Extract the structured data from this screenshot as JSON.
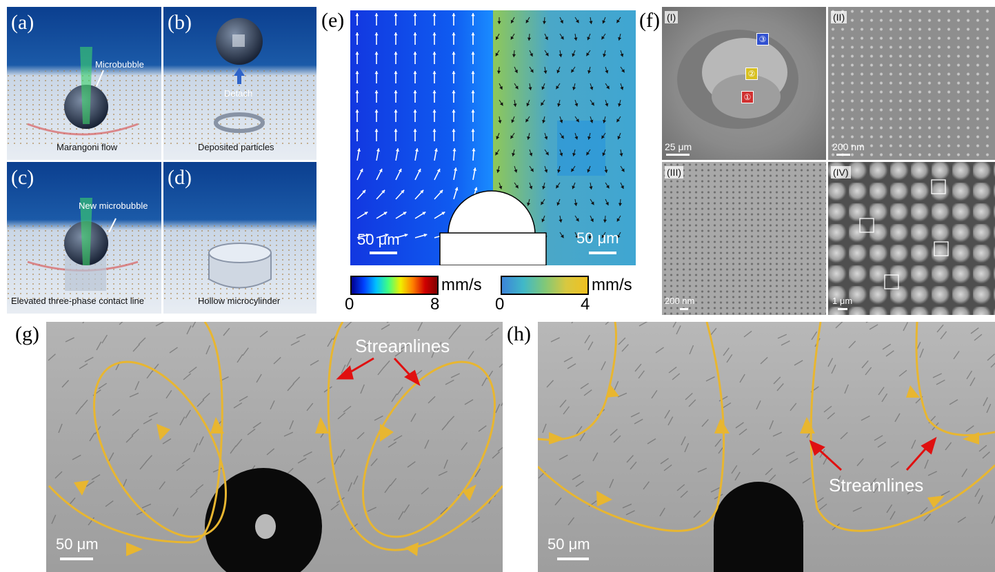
{
  "panels": {
    "a": {
      "label": "(a)",
      "microbubble": "Microbubble",
      "marangoni": "Marangoni flow"
    },
    "b": {
      "label": "(b)",
      "detach": "Detach",
      "deposited": "Deposited particles"
    },
    "c": {
      "label": "(c)",
      "new_microbubble": "New microbubble",
      "elevated": "Elevated three-phase contact line"
    },
    "d": {
      "label": "(d)",
      "hollow": "Hollow microcylinder"
    },
    "e": {
      "label": "(e)",
      "scale_left": "50 μm",
      "scale_right": "50 μm",
      "cbar_left": {
        "unit": "mm/s",
        "min": "0",
        "max": "8"
      },
      "cbar_right": {
        "unit": "mm/s",
        "min": "0",
        "max": "4"
      }
    },
    "f": {
      "label": "(f)",
      "sub": [
        {
          "label": "(I)",
          "scale": "25 μm",
          "markers": [
            "③",
            "②",
            "①"
          ]
        },
        {
          "label": "(II)",
          "scale": "200 nm"
        },
        {
          "label": "(III)",
          "scale": "200 nm"
        },
        {
          "label": "(IV)",
          "scale": "1 μm"
        }
      ]
    },
    "g": {
      "label": "(g)",
      "streamlines": "Streamlines",
      "scale": "50 μm"
    },
    "h": {
      "label": "(h)",
      "streamlines": "Streamlines",
      "scale": "50 μm"
    }
  },
  "colors": {
    "deep_blue": "#0a3a8c",
    "streamline": "#e8b630",
    "arrow_red": "#e01010"
  }
}
